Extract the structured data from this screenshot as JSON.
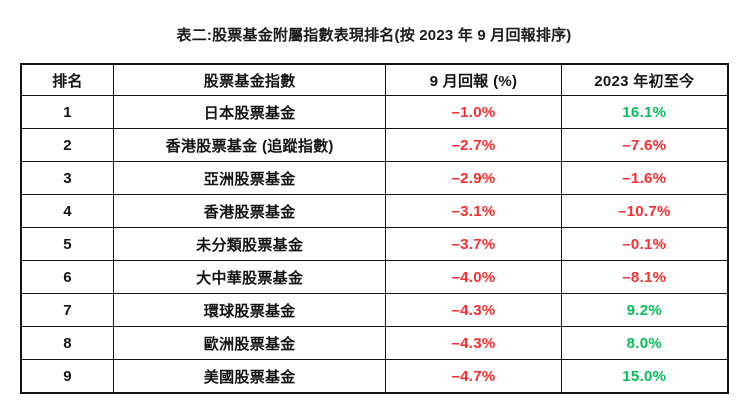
{
  "title": "表二:股票基金附屬指數表現排名(按 2023 年 9 月回報排序)",
  "colors": {
    "negative": "#fb2c30",
    "positive": "#00bf58",
    "text": "#141414",
    "border": "#141414"
  },
  "table": {
    "columns": [
      "排名",
      "股票基金指數",
      "9 月回報 (%)",
      "2023 年初至今"
    ],
    "rows": [
      {
        "rank": "1",
        "fund": "日本股票基金",
        "sep_return": "–1.0%",
        "sep_color": "negative",
        "ytd": "16.1%",
        "ytd_color": "positive"
      },
      {
        "rank": "2",
        "fund": "香港股票基金 (追蹤指數)",
        "sep_return": "–2.7%",
        "sep_color": "negative",
        "ytd": "–7.6%",
        "ytd_color": "negative"
      },
      {
        "rank": "3",
        "fund": "亞洲股票基金",
        "sep_return": "–2.9%",
        "sep_color": "negative",
        "ytd": "–1.6%",
        "ytd_color": "negative"
      },
      {
        "rank": "4",
        "fund": "香港股票基金",
        "sep_return": "–3.1%",
        "sep_color": "negative",
        "ytd": "–10.7%",
        "ytd_color": "negative"
      },
      {
        "rank": "5",
        "fund": "未分類股票基金",
        "sep_return": "–3.7%",
        "sep_color": "negative",
        "ytd": "–0.1%",
        "ytd_color": "negative"
      },
      {
        "rank": "6",
        "fund": "大中華股票基金",
        "sep_return": "–4.0%",
        "sep_color": "negative",
        "ytd": "–8.1%",
        "ytd_color": "negative"
      },
      {
        "rank": "7",
        "fund": "環球股票基金",
        "sep_return": "–4.3%",
        "sep_color": "negative",
        "ytd": "9.2%",
        "ytd_color": "positive"
      },
      {
        "rank": "8",
        "fund": "歐洲股票基金",
        "sep_return": "–4.3%",
        "sep_color": "negative",
        "ytd": "8.0%",
        "ytd_color": "positive"
      },
      {
        "rank": "9",
        "fund": "美國股票基金",
        "sep_return": "–4.7%",
        "sep_color": "negative",
        "ytd": "15.0%",
        "ytd_color": "positive"
      }
    ]
  }
}
